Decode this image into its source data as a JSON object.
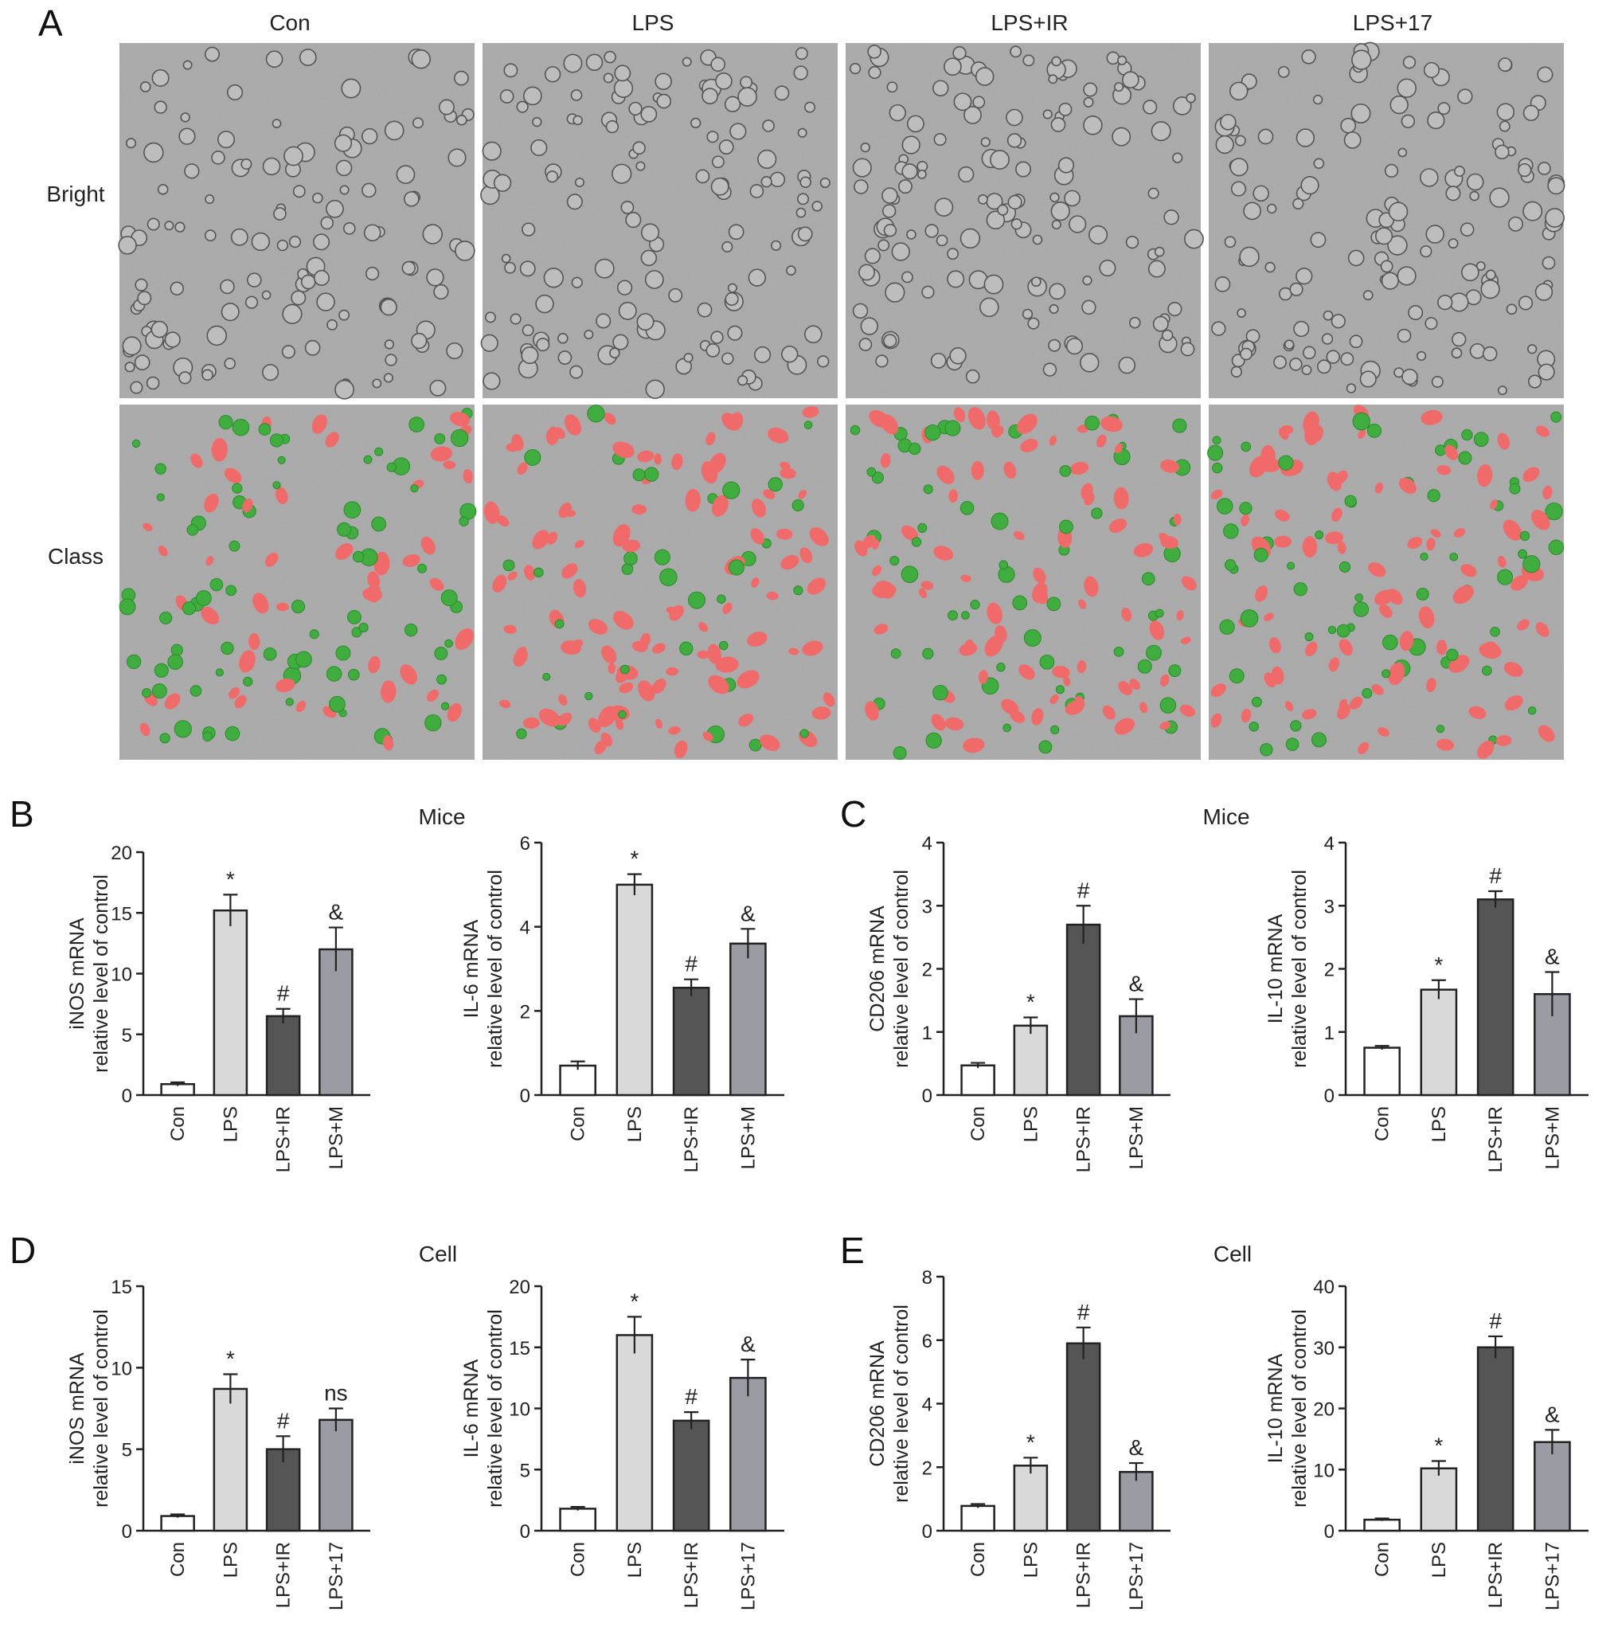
{
  "panelA": {
    "letter": "A",
    "columns": [
      "Con",
      "LPS",
      "LPS+IR",
      "LPS+17"
    ],
    "rows": [
      "Bright",
      "Class"
    ]
  },
  "panels": {
    "B": "B",
    "C": "C",
    "D": "D",
    "E": "E"
  },
  "sections": {
    "mice": "Mice",
    "cell": "Cell"
  },
  "colors": {
    "con": "#ffffff",
    "lps": "#d9d9d9",
    "ir": "#555555",
    "m": "#9b9ba3",
    "field": "#a9a9a9",
    "m1": "#f06a6a",
    "m2": "#3fae3f"
  },
  "chart_data": [
    {
      "id": "B1",
      "type": "bar",
      "categories": [
        "Con",
        "LPS",
        "LPS+IR",
        "LPS+M"
      ],
      "values": [
        0.9,
        15.2,
        6.5,
        12.0
      ],
      "errors": [
        0.15,
        1.3,
        0.6,
        1.8
      ],
      "sig": [
        "",
        "*",
        "#",
        "&"
      ],
      "ylabel": "iNOS mRNA relative level of control",
      "ylim": [
        0,
        20
      ],
      "yticks": [
        0,
        5,
        10,
        15,
        20
      ]
    },
    {
      "id": "B2",
      "type": "bar",
      "categories": [
        "Con",
        "LPS",
        "LPS+IR",
        "LPS+M"
      ],
      "values": [
        0.7,
        5.0,
        2.55,
        3.6
      ],
      "errors": [
        0.1,
        0.25,
        0.2,
        0.35
      ],
      "sig": [
        "",
        "*",
        "#",
        "&"
      ],
      "ylabel": "IL-6 mRNA relative level of control",
      "ylim": [
        0,
        6
      ],
      "yticks": [
        0,
        2,
        4,
        6
      ]
    },
    {
      "id": "C1",
      "type": "bar",
      "categories": [
        "Con",
        "LPS",
        "LPS+IR",
        "LPS+M"
      ],
      "values": [
        0.47,
        1.1,
        2.7,
        1.25
      ],
      "errors": [
        0.04,
        0.13,
        0.3,
        0.27
      ],
      "sig": [
        "",
        "*",
        "#",
        "&"
      ],
      "ylabel": "CD206 mRNA relative level of control",
      "ylim": [
        0,
        4
      ],
      "yticks": [
        0,
        1,
        2,
        3,
        4
      ]
    },
    {
      "id": "C2",
      "type": "bar",
      "categories": [
        "Con",
        "LPS",
        "LPS+IR",
        "LPS+M"
      ],
      "values": [
        0.75,
        1.67,
        3.1,
        1.6
      ],
      "errors": [
        0.03,
        0.15,
        0.13,
        0.35
      ],
      "sig": [
        "",
        "*",
        "#",
        "&"
      ],
      "ylabel": "IL-10 mRNA relative level of control",
      "ylim": [
        0,
        4
      ],
      "yticks": [
        0,
        1,
        2,
        3,
        4
      ]
    },
    {
      "id": "D1",
      "type": "bar",
      "categories": [
        "Con",
        "LPS",
        "LPS+IR",
        "LPS+17"
      ],
      "values": [
        0.9,
        8.7,
        5.0,
        6.8
      ],
      "errors": [
        0.1,
        0.9,
        0.8,
        0.7
      ],
      "sig": [
        "",
        "*",
        "#",
        "ns"
      ],
      "ylabel": "iNOS mRNA relative level of control",
      "ylim": [
        0,
        15
      ],
      "yticks": [
        0,
        5,
        10,
        15
      ]
    },
    {
      "id": "D2",
      "type": "bar",
      "categories": [
        "Con",
        "LPS",
        "LPS+IR",
        "LPS+17"
      ],
      "values": [
        1.8,
        16.0,
        9.0,
        12.5
      ],
      "errors": [
        0.15,
        1.5,
        0.7,
        1.5
      ],
      "sig": [
        "",
        "*",
        "#",
        "&"
      ],
      "ylabel": "IL-6 mRNA relative level of control",
      "ylim": [
        0,
        20
      ],
      "yticks": [
        0,
        5,
        10,
        15,
        20
      ]
    },
    {
      "id": "E1",
      "type": "bar",
      "categories": [
        "Con",
        "LPS",
        "LPS+IR",
        "LPS+17"
      ],
      "values": [
        0.78,
        2.05,
        5.9,
        1.85
      ],
      "errors": [
        0.06,
        0.25,
        0.5,
        0.28
      ],
      "sig": [
        "",
        "*",
        "#",
        "&"
      ],
      "ylabel": "CD206 mRNA relative level of control",
      "ylim": [
        0,
        8
      ],
      "yticks": [
        0,
        2,
        4,
        6,
        8
      ]
    },
    {
      "id": "E2",
      "type": "bar",
      "categories": [
        "Con",
        "LPS",
        "LPS+IR",
        "LPS+17"
      ],
      "values": [
        1.8,
        10.2,
        30.0,
        14.5
      ],
      "errors": [
        0.2,
        1.2,
        1.8,
        2.0
      ],
      "sig": [
        "",
        "*",
        "#",
        "&"
      ],
      "ylabel": "IL-10 mRNA relative level of control",
      "ylim": [
        0,
        40
      ],
      "yticks": [
        0,
        10,
        20,
        30,
        40
      ]
    }
  ]
}
